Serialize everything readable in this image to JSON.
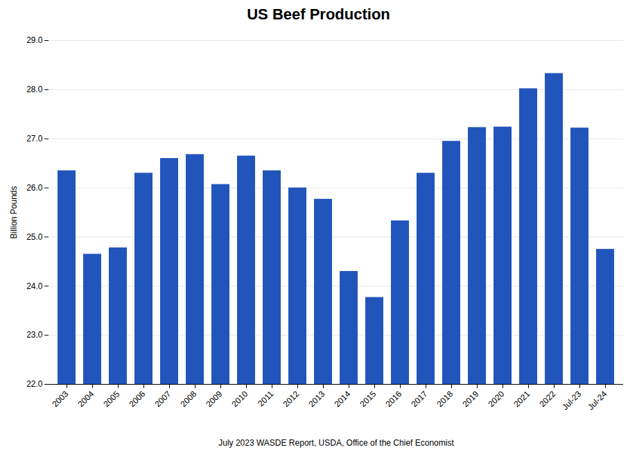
{
  "chart_data": {
    "type": "bar",
    "title": "US Beef Production",
    "xlabel": "July 2023 WASDE Report, USDA, Office of the Chief Economist",
    "ylabel": "Billion Pounds",
    "categories": [
      "2003",
      "2004",
      "2005",
      "2006",
      "2007",
      "2008",
      "2009",
      "2010",
      "2011",
      "2012",
      "2013",
      "2014",
      "2015",
      "2016",
      "2017",
      "2018",
      "2019",
      "2020",
      "2021",
      "2022",
      "Jul-23",
      "Jul-24"
    ],
    "values": [
      26.35,
      24.65,
      24.78,
      26.3,
      26.6,
      26.68,
      26.07,
      26.65,
      26.35,
      26.0,
      25.77,
      24.3,
      23.77,
      25.33,
      26.3,
      26.95,
      27.23,
      27.24,
      28.02,
      28.33,
      27.22,
      24.75
    ],
    "color": "#2255bb",
    "ylim": [
      22.0,
      29.0
    ],
    "yticks": [
      {
        "value": 22,
        "label": "22.0"
      },
      {
        "value": 23,
        "label": "23.0"
      },
      {
        "value": 24,
        "label": "24.0"
      },
      {
        "value": 25,
        "label": "25.0"
      },
      {
        "value": 26,
        "label": "26.0"
      },
      {
        "value": 27,
        "label": "27.0"
      },
      {
        "value": 28,
        "label": "28.0"
      },
      {
        "value": 29,
        "label": "29.0"
      }
    ],
    "grid": true
  }
}
